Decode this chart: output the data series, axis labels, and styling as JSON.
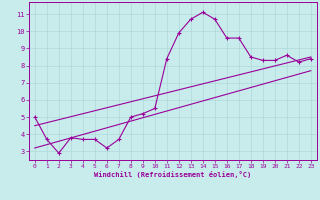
{
  "title": "",
  "xlabel": "Windchill (Refroidissement éolien,°C)",
  "ylabel": "",
  "background_color": "#c8ecec",
  "line_color": "#990099",
  "grid_color": "#b0d8d8",
  "xlim": [
    -0.5,
    23.5
  ],
  "ylim": [
    2.5,
    11.7
  ],
  "xticks": [
    0,
    1,
    2,
    3,
    4,
    5,
    6,
    7,
    8,
    9,
    10,
    11,
    12,
    13,
    14,
    15,
    16,
    17,
    18,
    19,
    20,
    21,
    22,
    23
  ],
  "yticks": [
    3,
    4,
    5,
    6,
    7,
    8,
    9,
    10,
    11
  ],
  "curve1_x": [
    0,
    1,
    2,
    3,
    4,
    5,
    6,
    7,
    8,
    9,
    10,
    11,
    12,
    13,
    14,
    15,
    16,
    17,
    18,
    19,
    20,
    21,
    22,
    23
  ],
  "curve1_y": [
    5.0,
    3.7,
    2.9,
    3.8,
    3.7,
    3.7,
    3.2,
    3.7,
    5.0,
    5.2,
    5.5,
    8.4,
    9.9,
    10.7,
    11.1,
    10.7,
    9.6,
    9.6,
    8.5,
    8.3,
    8.3,
    8.6,
    8.2,
    8.4
  ],
  "curve2_x": [
    0,
    23
  ],
  "curve2_y": [
    3.2,
    7.7
  ],
  "curve3_x": [
    0,
    23
  ],
  "curve3_y": [
    4.5,
    8.5
  ]
}
